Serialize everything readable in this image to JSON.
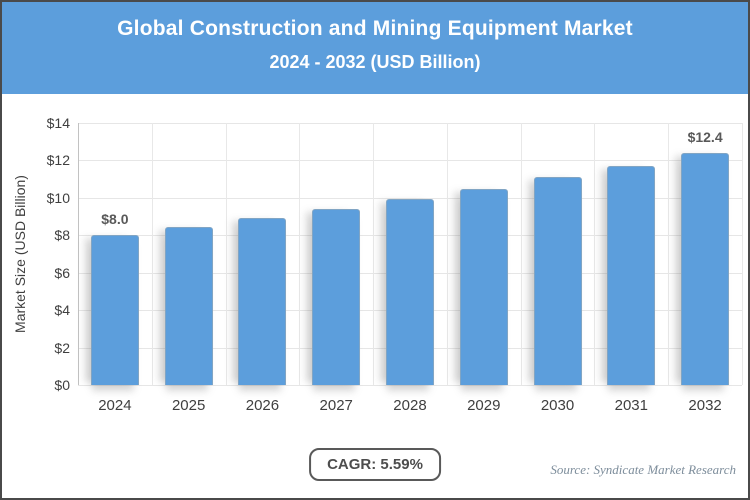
{
  "header": {
    "title": "Global Construction and Mining Equipment Market",
    "subtitle": "2024 - 2032 (USD Billion)"
  },
  "chart_data": {
    "type": "bar",
    "title": "Global Construction and Mining Equipment Market 2024 - 2032 (USD Billion)",
    "categories": [
      "2024",
      "2025",
      "2026",
      "2027",
      "2028",
      "2029",
      "2030",
      "2031",
      "2032"
    ],
    "values": [
      8.0,
      8.45,
      8.92,
      9.42,
      9.94,
      10.5,
      11.09,
      11.71,
      12.4
    ],
    "bar_labels": [
      "$8.0",
      "",
      "",
      "",
      "",
      "",
      "",
      "",
      "$12.4"
    ],
    "xlabel": "",
    "ylabel": "Market Size (USD Billion)",
    "ylim": [
      0,
      14
    ],
    "ytick_step": 2,
    "ytick_prefix": "$",
    "grid": true,
    "legend": "none",
    "cagr": "5.59%"
  },
  "footer": {
    "cagr_label": "CAGR: 5.59%",
    "source": "Source: Syndicate Market Research"
  },
  "colors": {
    "header_bg": "#5c9edc",
    "bar": "#5c9edc",
    "gridline": "#e6e6e6",
    "axis_line": "#c2c2c2",
    "tick_text": "#3f3f3f",
    "bar_label_text": "#595959",
    "source_text": "#7d8d9b",
    "frame_border": "#4a4a4a"
  }
}
